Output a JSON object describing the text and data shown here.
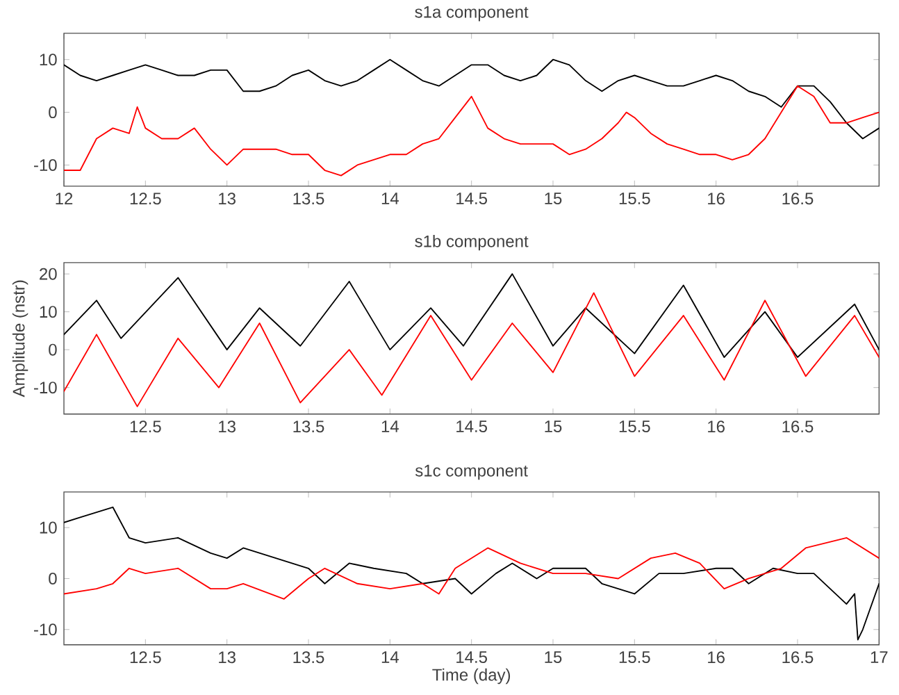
{
  "chart_data": [
    {
      "type": "line",
      "title": "s1a component",
      "xlim": [
        12,
        17
      ],
      "ylim": [
        -14,
        15
      ],
      "xticks": [
        12,
        12.5,
        13,
        13.5,
        14,
        14.5,
        15,
        15.5,
        16,
        16.5
      ],
      "yticks": [
        -10,
        0,
        10
      ],
      "series": [
        {
          "color": "#000000",
          "x": [
            12.0,
            12.1,
            12.2,
            12.3,
            12.4,
            12.5,
            12.6,
            12.7,
            12.8,
            12.9,
            13.0,
            13.1,
            13.2,
            13.3,
            13.4,
            13.5,
            13.6,
            13.7,
            13.8,
            13.9,
            14.0,
            14.1,
            14.2,
            14.3,
            14.4,
            14.5,
            14.6,
            14.7,
            14.8,
            14.9,
            15.0,
            15.1,
            15.2,
            15.3,
            15.4,
            15.5,
            15.6,
            15.7,
            15.8,
            15.9,
            16.0,
            16.1,
            16.2,
            16.3,
            16.4,
            16.5,
            16.6,
            16.7,
            16.8,
            16.9,
            17.0
          ],
          "values": [
            9,
            7,
            6,
            7,
            8,
            9,
            8,
            7,
            7,
            8,
            8,
            4,
            4,
            5,
            7,
            8,
            6,
            5,
            6,
            8,
            10,
            8,
            6,
            5,
            7,
            9,
            9,
            7,
            6,
            7,
            10,
            9,
            6,
            4,
            6,
            7,
            6,
            5,
            5,
            6,
            7,
            6,
            4,
            3,
            1,
            5,
            5,
            2,
            -2,
            -5,
            -3
          ]
        },
        {
          "color": "#ff0000",
          "x": [
            12.0,
            12.1,
            12.2,
            12.3,
            12.4,
            12.45,
            12.5,
            12.6,
            12.7,
            12.8,
            12.9,
            13.0,
            13.1,
            13.2,
            13.3,
            13.4,
            13.5,
            13.6,
            13.7,
            13.8,
            13.9,
            14.0,
            14.1,
            14.2,
            14.3,
            14.4,
            14.5,
            14.6,
            14.7,
            14.8,
            14.9,
            15.0,
            15.1,
            15.2,
            15.3,
            15.4,
            15.45,
            15.5,
            15.6,
            15.7,
            15.8,
            15.9,
            16.0,
            16.1,
            16.2,
            16.3,
            16.4,
            16.5,
            16.6,
            16.7,
            16.8,
            16.9,
            17.0
          ],
          "values": [
            -11,
            -11,
            -5,
            -3,
            -4,
            1,
            -3,
            -5,
            -5,
            -3,
            -7,
            -10,
            -7,
            -7,
            -7,
            -8,
            -8,
            -11,
            -12,
            -10,
            -9,
            -8,
            -8,
            -6,
            -5,
            -1,
            3,
            -3,
            -5,
            -6,
            -6,
            -6,
            -8,
            -7,
            -5,
            -2,
            0,
            -1,
            -4,
            -6,
            -7,
            -8,
            -8,
            -9,
            -8,
            -5,
            0,
            5,
            3,
            -2,
            -2,
            -1,
            0
          ]
        }
      ]
    },
    {
      "type": "line",
      "title": "s1b component",
      "ylabel": "Amplitude (nstr)",
      "xlim": [
        12,
        17
      ],
      "ylim": [
        -17,
        23
      ],
      "xticks": [
        12.5,
        13,
        13.5,
        14,
        14.5,
        15,
        15.5,
        16,
        16.5
      ],
      "yticks": [
        -10,
        0,
        10,
        20
      ],
      "series": [
        {
          "color": "#000000",
          "x": [
            12.0,
            12.2,
            12.35,
            12.7,
            13.0,
            13.2,
            13.45,
            13.75,
            14.0,
            14.25,
            14.45,
            14.75,
            15.0,
            15.2,
            15.5,
            15.8,
            16.05,
            16.3,
            16.5,
            16.85,
            17.0
          ],
          "values": [
            4,
            13,
            3,
            19,
            0,
            11,
            1,
            18,
            0,
            11,
            1,
            20,
            1,
            11,
            -1,
            17,
            -2,
            10,
            -2,
            12,
            0
          ]
        },
        {
          "color": "#ff0000",
          "x": [
            12.0,
            12.2,
            12.45,
            12.7,
            12.95,
            13.2,
            13.45,
            13.75,
            13.95,
            14.25,
            14.5,
            14.75,
            15.0,
            15.25,
            15.5,
            15.8,
            16.05,
            16.3,
            16.55,
            16.85,
            17.0
          ],
          "values": [
            -11,
            4,
            -15,
            3,
            -10,
            7,
            -14,
            0,
            -12,
            9,
            -8,
            7,
            -6,
            15,
            -7,
            9,
            -8,
            13,
            -7,
            9,
            -2
          ]
        }
      ]
    },
    {
      "type": "line",
      "title": "s1c component",
      "xlabel": "Time (day)",
      "xlim": [
        12,
        17
      ],
      "ylim": [
        -13,
        17
      ],
      "xticks": [
        12.5,
        13,
        13.5,
        14,
        14.5,
        15,
        15.5,
        16,
        16.5,
        17
      ],
      "yticks": [
        -10,
        0,
        10
      ],
      "series": [
        {
          "color": "#000000",
          "x": [
            12.0,
            12.1,
            12.3,
            12.4,
            12.5,
            12.7,
            12.9,
            13.0,
            13.1,
            13.3,
            13.5,
            13.6,
            13.75,
            13.9,
            14.1,
            14.2,
            14.4,
            14.5,
            14.65,
            14.75,
            14.9,
            15.0,
            15.2,
            15.3,
            15.5,
            15.65,
            15.8,
            16.0,
            16.1,
            16.2,
            16.35,
            16.5,
            16.6,
            16.7,
            16.8,
            16.85,
            16.87,
            16.9,
            17.0
          ],
          "values": [
            11,
            12,
            14,
            8,
            7,
            8,
            5,
            4,
            6,
            4,
            2,
            -1,
            3,
            2,
            1,
            -1,
            0,
            -3,
            1,
            3,
            0,
            2,
            2,
            -1,
            -3,
            1,
            1,
            2,
            2,
            -1,
            2,
            1,
            1,
            -2,
            -5,
            -3,
            -12,
            -10,
            -1
          ]
        },
        {
          "color": "#ff0000",
          "x": [
            12.0,
            12.2,
            12.3,
            12.4,
            12.5,
            12.7,
            12.9,
            13.0,
            13.1,
            13.35,
            13.5,
            13.6,
            13.8,
            14.0,
            14.2,
            14.3,
            14.4,
            14.6,
            14.8,
            15.0,
            15.2,
            15.4,
            15.6,
            15.75,
            15.9,
            16.05,
            16.2,
            16.4,
            16.55,
            16.8,
            17.0
          ],
          "values": [
            -3,
            -2,
            -1,
            2,
            1,
            2,
            -2,
            -2,
            -1,
            -4,
            0,
            2,
            -1,
            -2,
            -1,
            -3,
            2,
            6,
            3,
            1,
            1,
            0,
            4,
            5,
            3,
            -2,
            0,
            2,
            6,
            8,
            4
          ]
        }
      ]
    }
  ]
}
